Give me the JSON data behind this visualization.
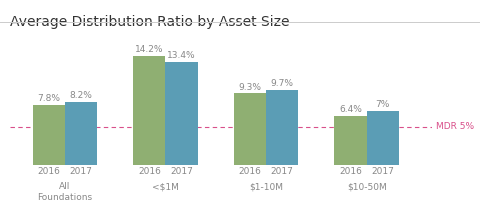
{
  "title": "Average Distribution Ratio by Asset Size",
  "groups": [
    "All\nFoundations",
    "<$1M",
    "$1-10M",
    "$10-50M"
  ],
  "years": [
    "2016",
    "2017"
  ],
  "values": [
    [
      7.8,
      8.2
    ],
    [
      14.2,
      13.4
    ],
    [
      9.3,
      9.7
    ],
    [
      6.4,
      7.0
    ]
  ],
  "bar_color_2016": "#8faf72",
  "bar_color_2017": "#5b9db5",
  "mdr_value": 5.0,
  "mdr_label": "MDR 5%",
  "mdr_color": "#d94f8a",
  "background_color": "#ffffff",
  "title_fontsize": 10,
  "label_fontsize": 6.5,
  "tick_fontsize": 6.5,
  "group_label_fontsize": 6.5,
  "bar_width": 0.32,
  "ylim": [
    0,
    17.0
  ],
  "separator_color": "#cccccc"
}
